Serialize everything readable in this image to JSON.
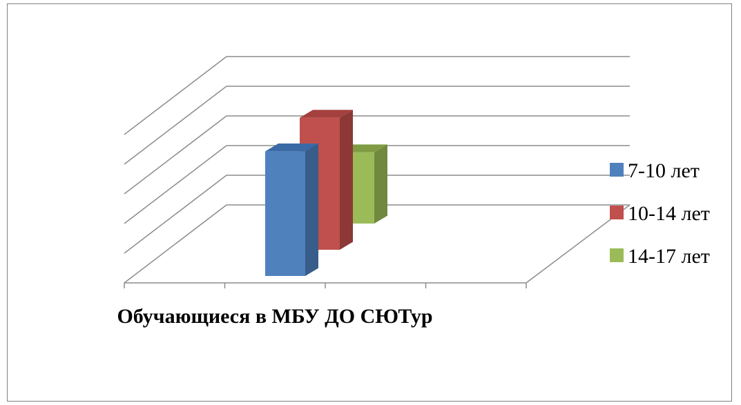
{
  "chart_data": {
    "type": "bar",
    "variant": "3d-column",
    "title": "",
    "xlabel": "",
    "ylabel": "",
    "categories": [
      "Обучающиеся в МБУ ДО СЮТур"
    ],
    "series": [
      {
        "name": "7-10 лет",
        "values": [
          4.2
        ],
        "color": "#4f81bd",
        "color_side": "#385d8a",
        "color_top": "#3a6aa6"
      },
      {
        "name": "10-14 лет",
        "values": [
          4.45
        ],
        "color": "#c0504d",
        "color_side": "#8c3836",
        "color_top": "#a4403d"
      },
      {
        "name": "14-17 лет",
        "values": [
          2.4
        ],
        "color": "#9bbb59",
        "color_side": "#71893f",
        "color_top": "#7f9c44"
      }
    ],
    "ylim": [
      0,
      5
    ],
    "grid": true,
    "legend": "right"
  }
}
